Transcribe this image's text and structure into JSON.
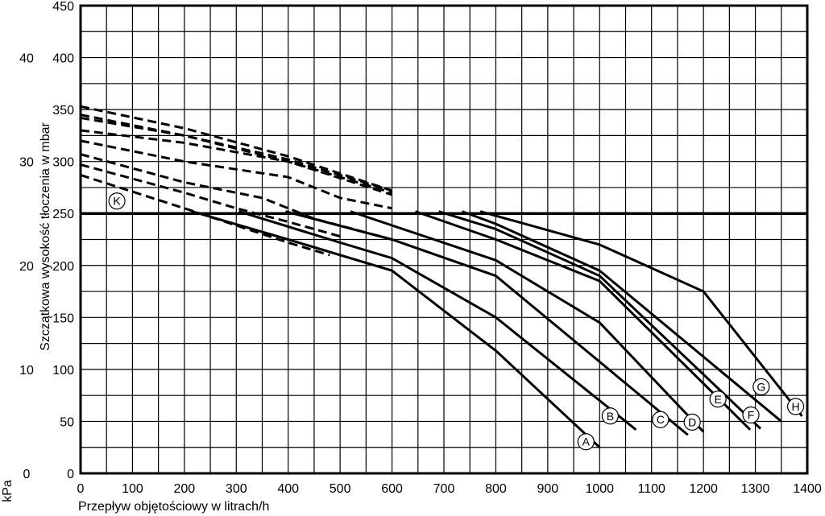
{
  "chart_data": {
    "type": "line",
    "xlabel": "Przepływ objętościowy w litrach/h",
    "ylabel": "Szczątkowa wysokość tłoczenia w mbar",
    "ylabel2": "kPa",
    "xlim": [
      0,
      1400
    ],
    "ylim": [
      0,
      450
    ],
    "xticks": [
      "0",
      "100",
      "200",
      "300",
      "400",
      "500",
      "600",
      "700",
      "800",
      "900",
      "1000",
      "1100",
      "1200",
      "1300",
      "1400"
    ],
    "yticks": [
      "0",
      "50",
      "100",
      "150",
      "200",
      "250",
      "300",
      "350",
      "400",
      "450"
    ],
    "yticks2": [
      "0",
      "10",
      "20",
      "30",
      "40"
    ],
    "grid": true,
    "reference_line": {
      "y": 250,
      "label": "K"
    },
    "series": [
      {
        "name": "A",
        "dashed": {
          "x": [
            0,
            200,
            400,
            480
          ],
          "y": [
            287,
            255,
            222,
            210
          ]
        },
        "solid": {
          "x": [
            215,
            400,
            600,
            800,
            1000
          ],
          "y": [
            252,
            225,
            195,
            118,
            25
          ]
        }
      },
      {
        "name": "B",
        "dashed": {
          "x": [
            0,
            200,
            300,
            400,
            500
          ],
          "y": [
            297,
            270,
            255,
            242,
            228
          ]
        },
        "solid": {
          "x": [
            305,
            500,
            600,
            800,
            1070
          ],
          "y": [
            252,
            222,
            207,
            150,
            42
          ]
        }
      },
      {
        "name": "C",
        "dashed": {
          "x": [
            0,
            200,
            350,
            450,
            600
          ],
          "y": [
            307,
            280,
            265,
            245,
            225
          ]
        },
        "solid": {
          "x": [
            395,
            600,
            800,
            1170
          ],
          "y": [
            252,
            225,
            190,
            37
          ]
        }
      },
      {
        "name": "D",
        "dashed": {
          "x": [
            0,
            200,
            400,
            500,
            600
          ],
          "y": [
            320,
            300,
            285,
            265,
            255
          ]
        },
        "solid": {
          "x": [
            520,
            800,
            1000,
            1200
          ],
          "y": [
            252,
            205,
            145,
            40
          ]
        }
      },
      {
        "name": "E",
        "dashed": {
          "x": [
            0,
            200,
            400,
            600
          ],
          "y": [
            330,
            318,
            300,
            270
          ]
        },
        "solid": {
          "x": [
            645,
            800,
            1000,
            1290
          ],
          "y": [
            252,
            225,
            185,
            42
          ]
        }
      },
      {
        "name": "F",
        "dashed": {
          "x": [
            0,
            200,
            400,
            600
          ],
          "y": [
            342,
            325,
            300,
            268
          ]
        },
        "solid": {
          "x": [
            690,
            800,
            1000,
            1310
          ],
          "y": [
            252,
            235,
            190,
            43
          ]
        }
      },
      {
        "name": "G",
        "dashed": {
          "x": [
            0,
            200,
            400,
            600
          ],
          "y": [
            345,
            325,
            302,
            272
          ]
        },
        "solid": {
          "x": [
            735,
            800,
            1000,
            1350
          ],
          "y": [
            252,
            240,
            195,
            50
          ]
        }
      },
      {
        "name": "H",
        "dashed": {
          "x": [
            0,
            200,
            400,
            600
          ],
          "y": [
            353,
            332,
            305,
            272
          ]
        },
        "solid": {
          "x": [
            770,
            1000,
            1200,
            1390
          ],
          "y": [
            252,
            220,
            175,
            55
          ]
        }
      }
    ]
  }
}
